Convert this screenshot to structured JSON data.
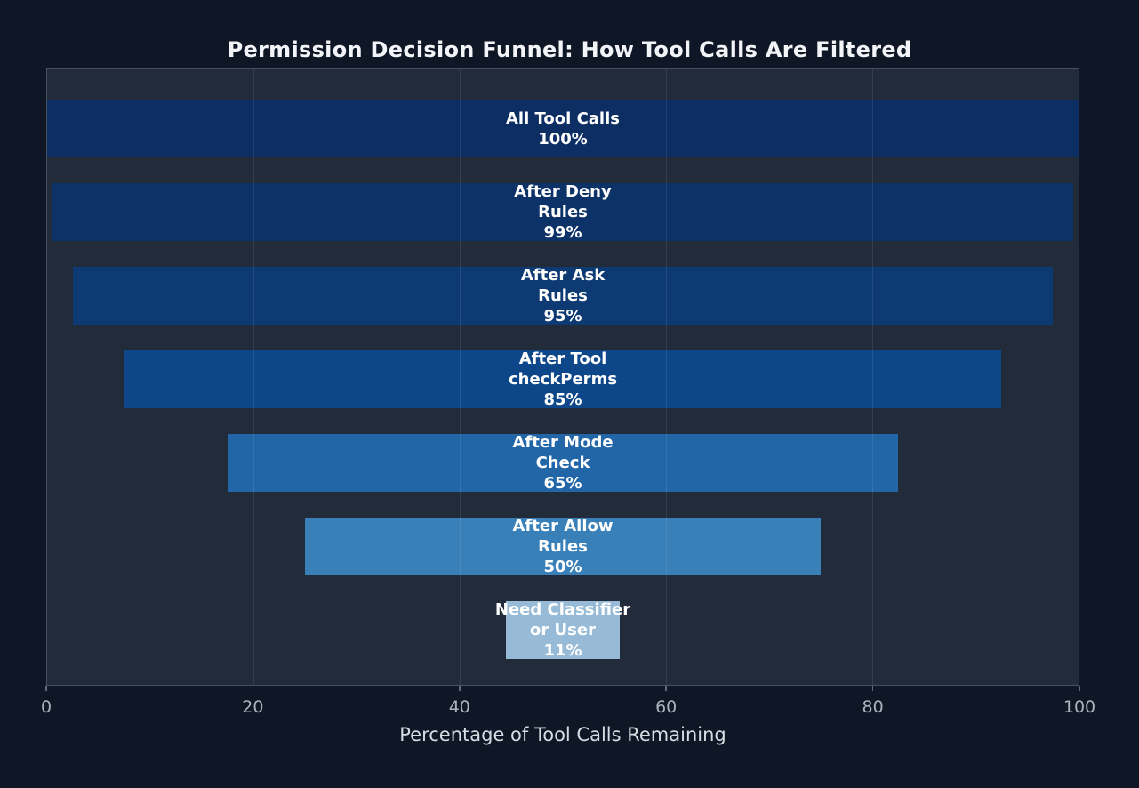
{
  "title": "Permission Decision Funnel: How Tool Calls Are Filtered",
  "chart_data": {
    "type": "bar",
    "variant": "centered_funnel",
    "orientation": "horizontal",
    "title": "Permission Decision Funnel: How Tool Calls Are Filtered",
    "xlabel": "Percentage of Tool Calls Remaining",
    "xlim": [
      0,
      100
    ],
    "x_ticks": [
      0,
      20,
      40,
      60,
      80,
      100
    ],
    "grid": true,
    "legend": "none",
    "stages": [
      {
        "name": "All Tool Calls",
        "value": 100,
        "display_lines": [
          "All Tool Calls",
          "100%"
        ],
        "color": "#0c2e63"
      },
      {
        "name": "After Deny Rules",
        "value": 99,
        "display_lines": [
          "After Deny",
          "Rules",
          "99%"
        ],
        "color": "#0d3268"
      },
      {
        "name": "After Ask Rules",
        "value": 95,
        "display_lines": [
          "After Ask",
          "Rules",
          "95%"
        ],
        "color": "#0d3a72"
      },
      {
        "name": "After Tool checkPerms",
        "value": 85,
        "display_lines": [
          "After Tool",
          "checkPerms",
          "85%"
        ],
        "color": "#0d4689"
      },
      {
        "name": "After Mode Check",
        "value": 65,
        "display_lines": [
          "After Mode",
          "Check",
          "65%"
        ],
        "color": "#2266a8"
      },
      {
        "name": "After Allow Rules",
        "value": 50,
        "display_lines": [
          "After Allow",
          "Rules",
          "50%"
        ],
        "color": "#3a80b8"
      },
      {
        "name": "Need Classifier or User",
        "value": 11,
        "display_lines": [
          "Need Classifier",
          "or User",
          "11%"
        ],
        "color": "#97bbd6"
      }
    ],
    "colors": {
      "background": "#0f1625",
      "plot_background": "#212b3a",
      "plot_border": "#46505e",
      "gridline": "rgba(169,184,202,0.14)",
      "title_text": "#f2f4f7",
      "bar_label_text": "#ffffff",
      "tick_label_text": "#a9b2bf",
      "axis_label_text": "#d7dce3"
    }
  }
}
